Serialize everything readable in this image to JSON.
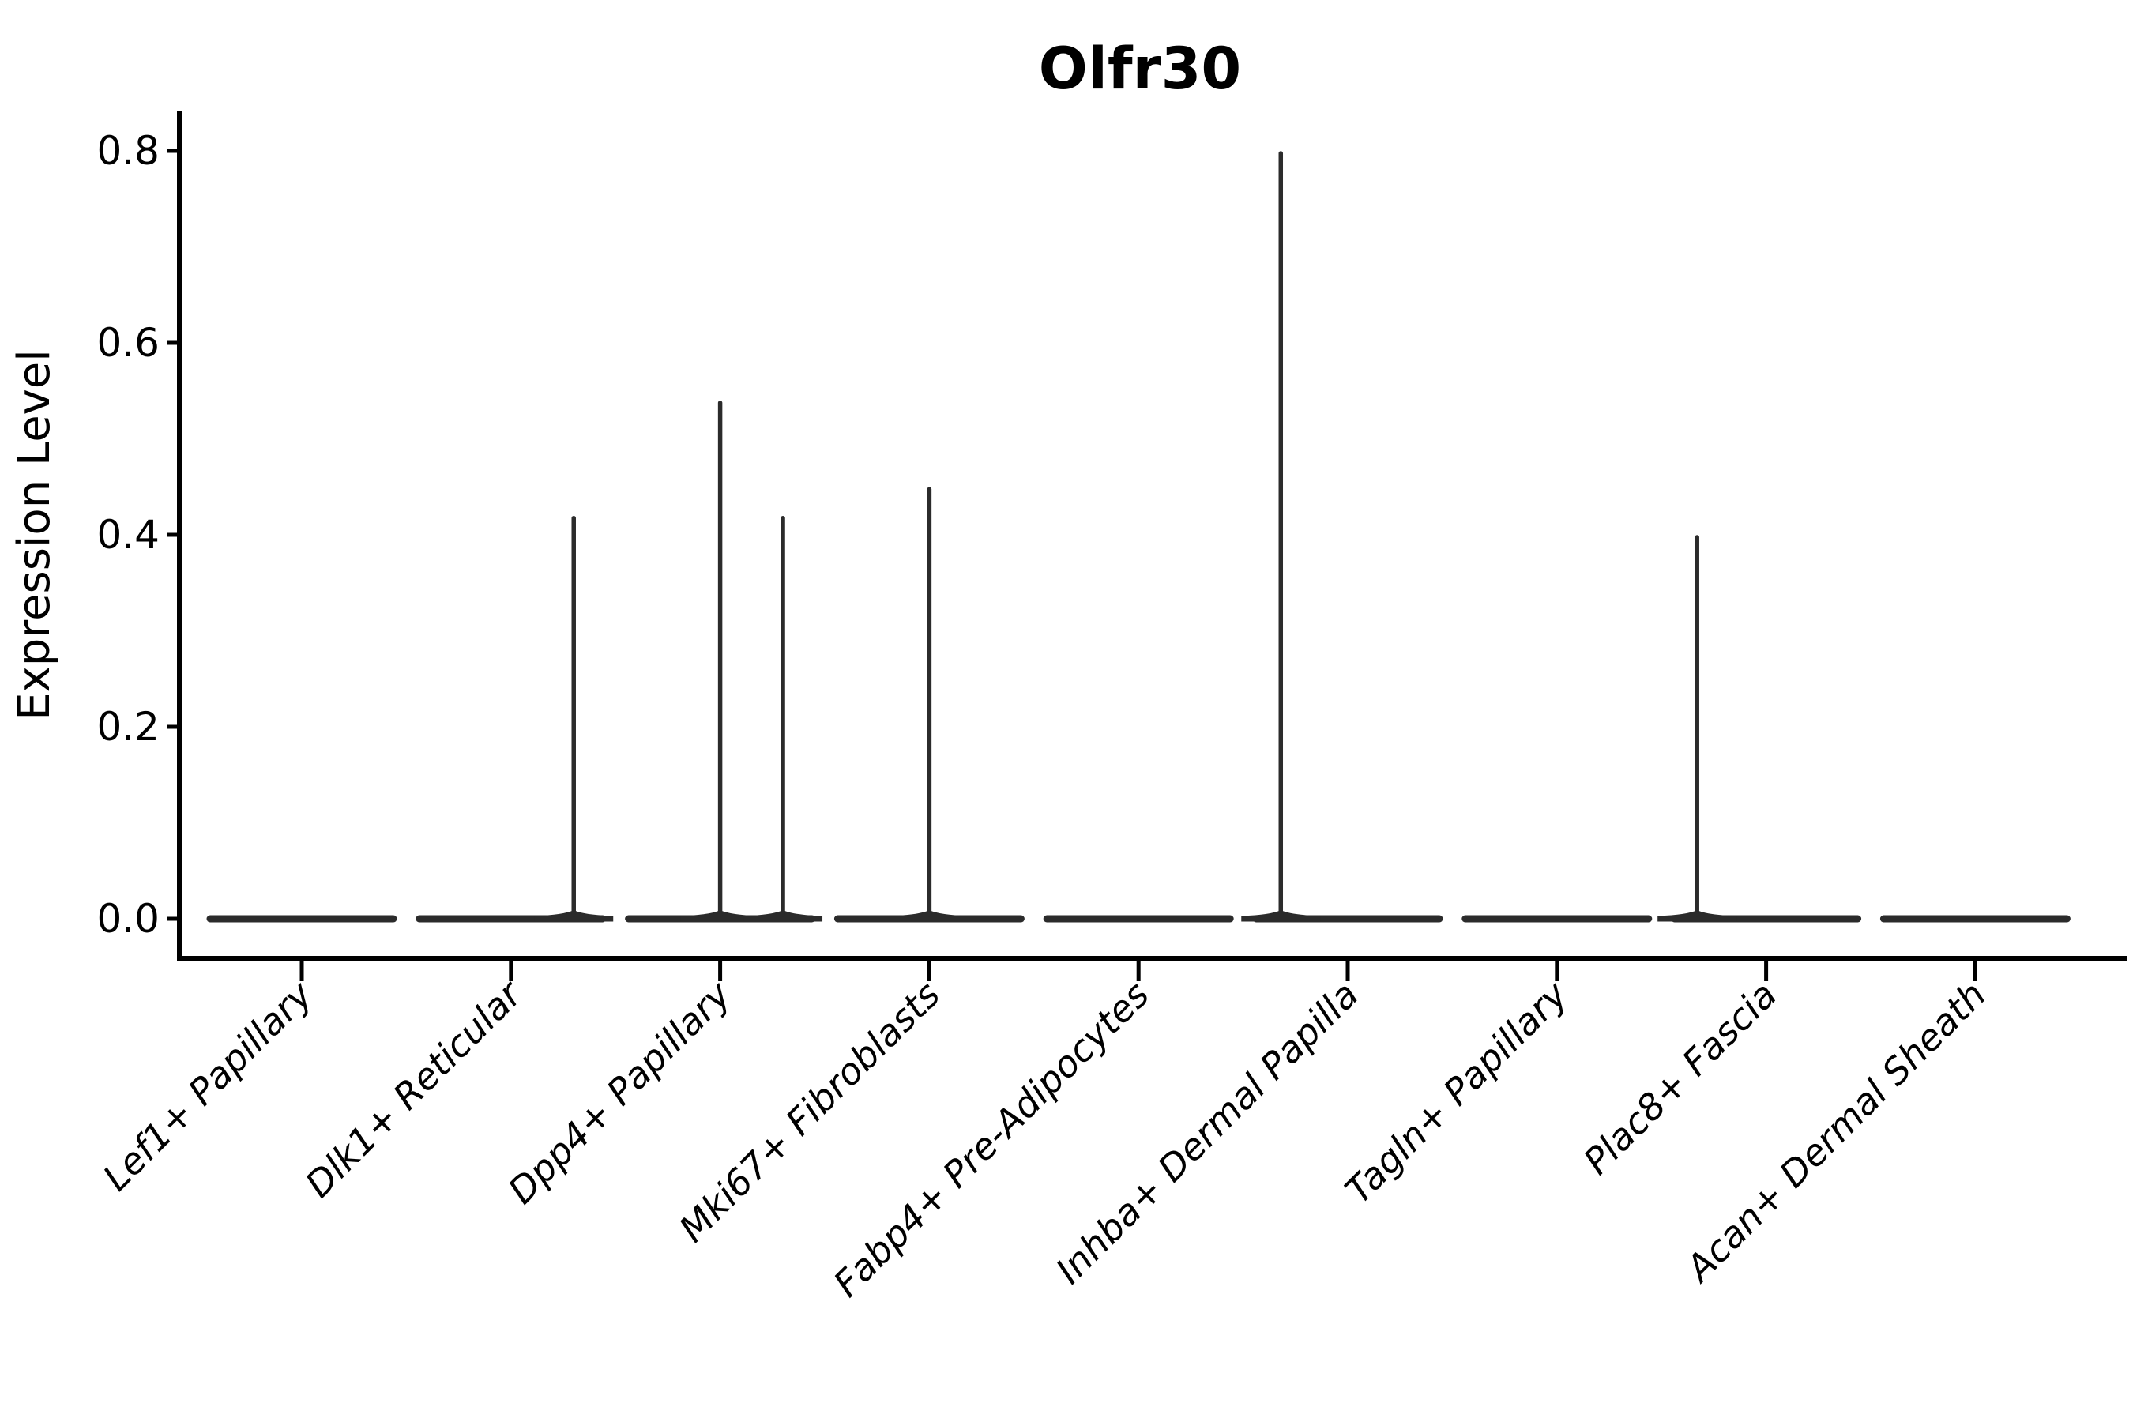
{
  "title": "Olfr30",
  "colors": {
    "background": "#ffffff",
    "axis": "#000000",
    "text": "#000000",
    "violin": "#2b2b2b"
  },
  "chart_data": {
    "type": "violin",
    "title": "Olfr30",
    "xlabel": "",
    "ylabel": "Expression Level",
    "grid": false,
    "legend": null,
    "ylim": [
      -0.04,
      0.84
    ],
    "yticks": [
      "0.0",
      "0.2",
      "0.4",
      "0.6",
      "0.8"
    ],
    "ytick_values": [
      0.0,
      0.2,
      0.4,
      0.6,
      0.8
    ],
    "categories": [
      "Lef1+ Papillary",
      "Dlk1+ Reticular",
      "Dpp4+ Papillary",
      "Mki67+ Fibroblasts",
      "Fabp4+ Pre-Adipocytes",
      "Inhba+ Dermal Papilla",
      "Tagln+ Papillary",
      "Plac8+ Fascia",
      "Acan+ Dermal Sheath"
    ],
    "violins": [
      {
        "category": "Lef1+ Papillary",
        "base_value": 0,
        "spikes": []
      },
      {
        "category": "Dlk1+ Reticular",
        "base_value": 0,
        "spikes": [
          {
            "offset": 0.3,
            "max": 0.42
          }
        ]
      },
      {
        "category": "Dpp4+ Papillary",
        "base_value": 0,
        "spikes": [
          {
            "offset": 0.0,
            "max": 0.54
          },
          {
            "offset": 0.3,
            "max": 0.42
          }
        ]
      },
      {
        "category": "Mki67+ Fibroblasts",
        "base_value": 0,
        "spikes": [
          {
            "offset": 0.0,
            "max": 0.45
          }
        ]
      },
      {
        "category": "Fabp4+ Pre-Adipocytes",
        "base_value": 0,
        "spikes": []
      },
      {
        "category": "Inhba+ Dermal Papilla",
        "base_value": 0,
        "spikes": [
          {
            "offset": -0.32,
            "max": 0.8
          }
        ]
      },
      {
        "category": "Tagln+ Papillary",
        "base_value": 0,
        "spikes": []
      },
      {
        "category": "Plac8+ Fascia",
        "base_value": 0,
        "spikes": [
          {
            "offset": -0.33,
            "max": 0.4
          }
        ]
      },
      {
        "category": "Acan+ Dermal Sheath",
        "base_value": 0,
        "spikes": []
      }
    ]
  }
}
